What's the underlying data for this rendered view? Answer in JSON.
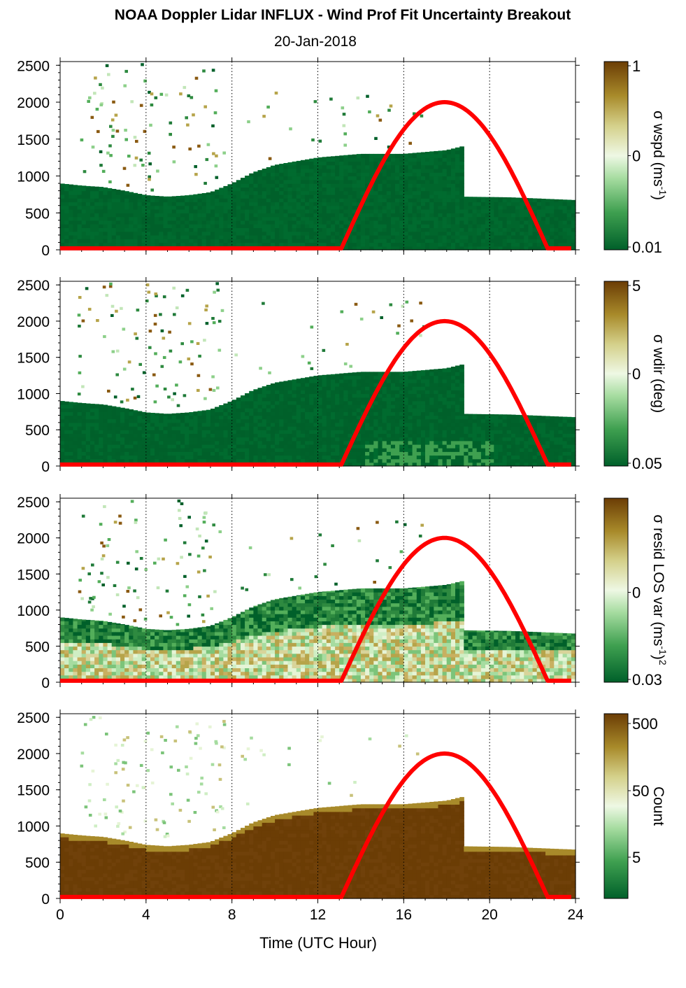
{
  "title": "NOAA Doppler Lidar INFLUX - Wind Prof Fit Uncertainty Breakout",
  "subtitle": "20-Jan-2018",
  "colors": {
    "dark_green": "#00602a",
    "mid_green": "#3fa050",
    "light_green": "#a6dca0",
    "pale": "#eef8e4",
    "tan": "#c8b050",
    "brown": "#7a4a08",
    "dark_brown": "#6b3d05",
    "sun_curve": "#ff0000"
  },
  "chart_data": [
    {
      "type": "heatmap",
      "xlabel": "",
      "ylabel": "",
      "xlim": [
        0,
        24
      ],
      "ylim": [
        0,
        2550
      ],
      "xticks": [
        "0",
        "4",
        "8",
        "12",
        "16",
        "20",
        "24"
      ],
      "yticks": [
        "0",
        "500",
        "1000",
        "1500",
        "2000",
        "2500"
      ],
      "grid": "vertical dotted at 4-hour intervals",
      "colorbar": {
        "label": "σ wspd (ms-1)",
        "ticks": [
          "1",
          "0",
          "0.01"
        ],
        "scale": "log"
      },
      "solar_elevation_curve": {
        "start_hour": 13.1,
        "peak_hour": 17.9,
        "end_hour": 22.7,
        "peak": 2000
      },
      "mixed_layer_top": [
        [
          0,
          900
        ],
        [
          1,
          870
        ],
        [
          2,
          850
        ],
        [
          3,
          800
        ],
        [
          4,
          740
        ],
        [
          5,
          720
        ],
        [
          6,
          740
        ],
        [
          7,
          780
        ],
        [
          8,
          900
        ],
        [
          9,
          1050
        ],
        [
          10,
          1150
        ],
        [
          11,
          1200
        ],
        [
          12,
          1250
        ],
        [
          14,
          1300
        ],
        [
          16,
          1300
        ],
        [
          18,
          1350
        ],
        [
          18.7,
          1400
        ],
        [
          18.7,
          720
        ],
        [
          21,
          710
        ],
        [
          22.5,
          680
        ],
        [
          23.8,
          690
        ]
      ]
    },
    {
      "type": "heatmap",
      "xlabel": "",
      "ylabel": "",
      "xlim": [
        0,
        24
      ],
      "ylim": [
        0,
        2550
      ],
      "xticks": [
        "0",
        "4",
        "8",
        "12",
        "16",
        "20",
        "24"
      ],
      "yticks": [
        "0",
        "500",
        "1000",
        "1500",
        "2000",
        "2500"
      ],
      "grid": "vertical dotted at 4-hour intervals",
      "colorbar": {
        "label": "σ wdir (deg)",
        "ticks": [
          "5",
          "0",
          "0.05"
        ],
        "scale": "log"
      },
      "solar_elevation_curve": {
        "start_hour": 13.1,
        "peak_hour": 17.9,
        "end_hour": 22.7,
        "peak": 2000
      }
    },
    {
      "type": "heatmap",
      "xlabel": "",
      "ylabel": "",
      "xlim": [
        0,
        24
      ],
      "ylim": [
        0,
        2550
      ],
      "xticks": [
        "0",
        "4",
        "8",
        "12",
        "16",
        "20",
        "24"
      ],
      "yticks": [
        "0",
        "500",
        "1000",
        "1500",
        "2000",
        "2500"
      ],
      "grid": "vertical dotted at 4-hour intervals",
      "colorbar": {
        "label": "σ resid LOS var (ms-1)2",
        "ticks": [
          "0",
          "0.03"
        ],
        "scale": "log"
      },
      "solar_elevation_curve": {
        "start_hour": 13.1,
        "peak_hour": 17.9,
        "end_hour": 22.7,
        "peak": 2000
      }
    },
    {
      "type": "heatmap",
      "xlabel": "Time (UTC Hour)",
      "ylabel": "",
      "xlim": [
        0,
        24
      ],
      "ylim": [
        0,
        2550
      ],
      "xticks": [
        "0",
        "4",
        "8",
        "12",
        "16",
        "20",
        "24"
      ],
      "yticks": [
        "0",
        "500",
        "1000",
        "1500",
        "2000",
        "2500"
      ],
      "grid": "vertical dotted at 4-hour intervals",
      "colorbar": {
        "label": "Count",
        "ticks": [
          "500",
          "50",
          "5"
        ],
        "scale": "log"
      },
      "solar_elevation_curve": {
        "start_hour": 13.1,
        "peak_hour": 17.9,
        "end_hour": 22.7,
        "peak": 2000
      }
    }
  ],
  "labels": {
    "panel1_cb_label": "σ wspd (ms",
    "panel1_cb_sup": "-1",
    "panel1_cb_tail": ")",
    "panel2_cb_label": "σ wdir (deg)",
    "panel3_cb_label": "σ resid LOS var (ms",
    "panel3_cb_sup": "-1",
    "panel3_cb_mid": ")",
    "panel3_cb_sup2": "2",
    "panel4_cb_label": "Count",
    "xlabel": "Time (UTC Hour)"
  }
}
